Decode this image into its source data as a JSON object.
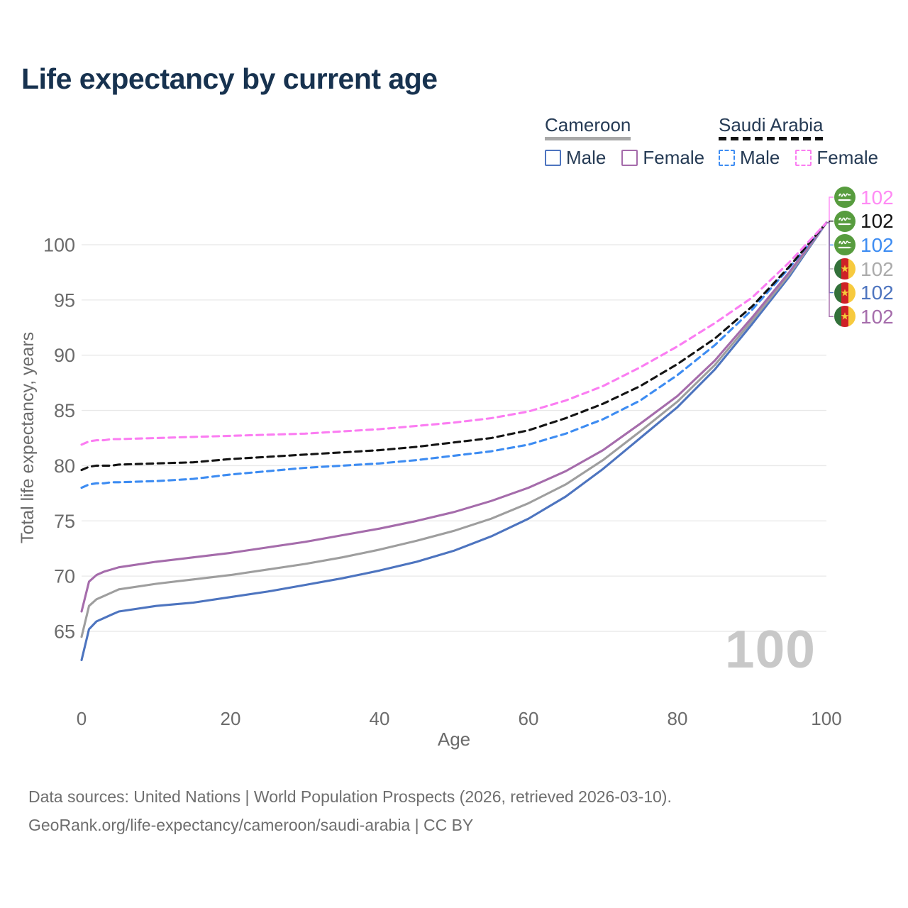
{
  "title": "Life expectancy by current age",
  "watermark": "100",
  "legend": {
    "groups": [
      {
        "label": "Cameroon",
        "line_style": "solid",
        "line_color": "#a8a8a8",
        "items": [
          {
            "label": "Male",
            "color": "#4d74bf"
          },
          {
            "label": "Female",
            "color": "#a56cab"
          }
        ]
      },
      {
        "label": "Saudi Arabia",
        "line_style": "dashed",
        "line_color": "#141414",
        "items": [
          {
            "label": "Male",
            "color": "#3d8cf2"
          },
          {
            "label": "Female",
            "color": "#fb7df2"
          }
        ]
      }
    ]
  },
  "chart_data": {
    "type": "line",
    "title": "Life expectancy by current age",
    "xlabel": "Age",
    "ylabel": "Total life expectancy, years",
    "xlim": [
      0,
      100
    ],
    "ylim": [
      62,
      102.5
    ],
    "x_ticks": [
      0,
      20,
      40,
      60,
      80,
      100
    ],
    "y_ticks": [
      65,
      70,
      75,
      80,
      85,
      90,
      95,
      100
    ],
    "grid": "horizontal",
    "legend_position": "top-right",
    "x": [
      0,
      1,
      2,
      3,
      4,
      5,
      10,
      15,
      20,
      25,
      30,
      35,
      40,
      45,
      50,
      55,
      60,
      65,
      70,
      75,
      80,
      85,
      90,
      95,
      100
    ],
    "series": [
      {
        "name": "Cameroon Male",
        "country": "Cameroon",
        "sex": "male",
        "color": "#4d74bf",
        "dashed": false,
        "end_label": "102",
        "values": [
          62.4,
          65.2,
          65.9,
          66.2,
          66.5,
          66.8,
          67.3,
          67.6,
          68.1,
          68.6,
          69.2,
          69.8,
          70.5,
          71.3,
          72.3,
          73.6,
          75.2,
          77.2,
          79.7,
          82.5,
          85.3,
          88.7,
          92.8,
          97.1,
          102
        ]
      },
      {
        "name": "Cameroon Both sexes",
        "country": "Cameroon",
        "sex": "both",
        "color": "#9e9e9e",
        "dashed": false,
        "end_label": "102",
        "values": [
          64.5,
          67.3,
          67.9,
          68.2,
          68.5,
          68.8,
          69.3,
          69.7,
          70.1,
          70.6,
          71.1,
          71.7,
          72.4,
          73.2,
          74.1,
          75.2,
          76.6,
          78.3,
          80.5,
          83.1,
          85.8,
          89.1,
          93.1,
          97.3,
          102
        ]
      },
      {
        "name": "Cameroon Female",
        "country": "Cameroon",
        "sex": "female",
        "color": "#a56cab",
        "dashed": false,
        "end_label": "102",
        "values": [
          66.8,
          69.5,
          70.1,
          70.4,
          70.6,
          70.8,
          71.3,
          71.7,
          72.1,
          72.6,
          73.1,
          73.7,
          74.3,
          75.0,
          75.8,
          76.8,
          78.0,
          79.5,
          81.4,
          83.8,
          86.3,
          89.5,
          93.4,
          97.5,
          102
        ]
      },
      {
        "name": "Saudi Arabia Male",
        "country": "Saudi Arabia",
        "sex": "male",
        "color": "#3d8cf2",
        "dashed": true,
        "end_label": "102",
        "values": [
          78.0,
          78.3,
          78.4,
          78.4,
          78.5,
          78.5,
          78.6,
          78.8,
          79.2,
          79.5,
          79.8,
          80.0,
          80.2,
          80.5,
          80.9,
          81.3,
          81.9,
          82.9,
          84.2,
          85.9,
          88.2,
          90.9,
          94.1,
          97.9,
          102
        ]
      },
      {
        "name": "Saudi Arabia Both sexes",
        "country": "Saudi Arabia",
        "sex": "both",
        "color": "#141414",
        "dashed": true,
        "end_label": "102",
        "values": [
          79.6,
          79.9,
          80.0,
          80.0,
          80.0,
          80.1,
          80.2,
          80.3,
          80.6,
          80.8,
          81.0,
          81.2,
          81.4,
          81.7,
          82.1,
          82.5,
          83.2,
          84.3,
          85.6,
          87.2,
          89.2,
          91.5,
          94.4,
          98.0,
          102
        ]
      },
      {
        "name": "Saudi Arabia Female",
        "country": "Saudi Arabia",
        "sex": "female",
        "color": "#fb7df2",
        "dashed": true,
        "end_label": "102",
        "values": [
          81.9,
          82.2,
          82.3,
          82.3,
          82.4,
          82.4,
          82.5,
          82.6,
          82.7,
          82.8,
          82.9,
          83.1,
          83.3,
          83.6,
          83.9,
          84.3,
          84.9,
          85.9,
          87.2,
          88.9,
          90.8,
          92.9,
          95.2,
          98.4,
          102
        ]
      }
    ]
  },
  "end_labels": [
    {
      "flag": "saudi-arabia",
      "value": "102",
      "color": "#ff8af4"
    },
    {
      "flag": "saudi-arabia",
      "value": "102",
      "color": "#141414"
    },
    {
      "flag": "saudi-arabia",
      "value": "102",
      "color": "#3d8cf2"
    },
    {
      "flag": "cameroon",
      "value": "102",
      "color": "#ababab"
    },
    {
      "flag": "cameroon",
      "value": "102",
      "color": "#4d74bf"
    },
    {
      "flag": "cameroon",
      "value": "102",
      "color": "#a56cab"
    }
  ],
  "footer": {
    "line1": "Data sources: United Nations | World Population Prospects (2026, retrieved 2026-03-10).",
    "line2": "GeoRank.org/life-expectancy/cameroon/saudi-arabia | CC BY"
  }
}
